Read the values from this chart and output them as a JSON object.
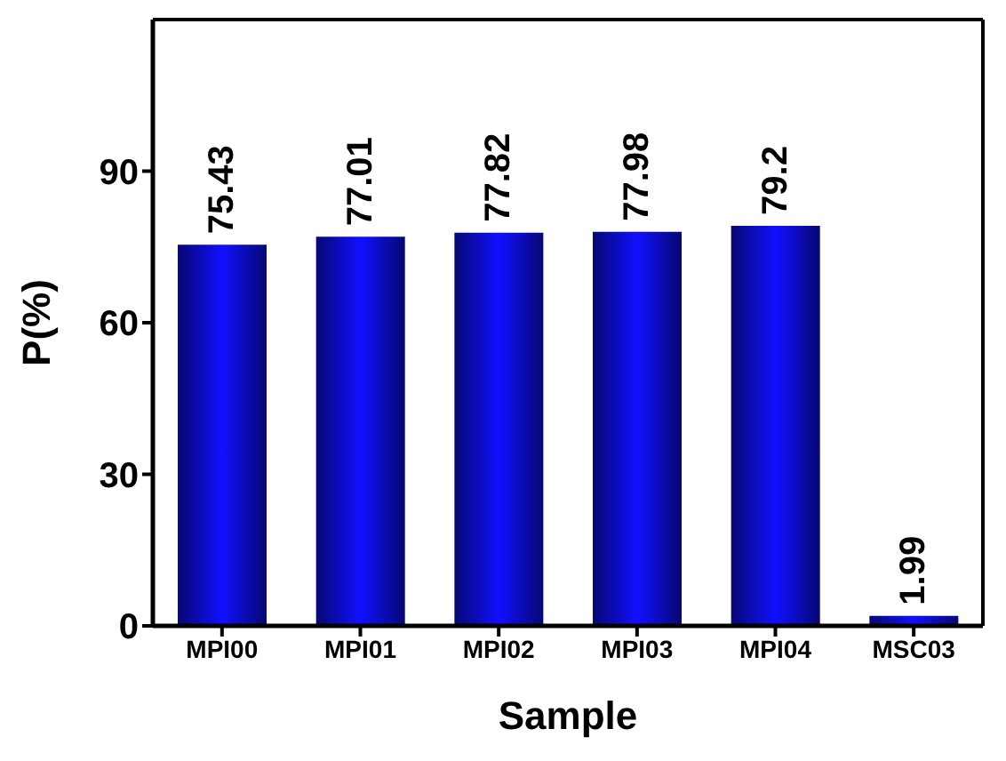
{
  "chart_data": {
    "type": "bar",
    "xlabel": "Sample",
    "ylabel": "P(%)",
    "categories": [
      "MPI00",
      "MPI01",
      "MPI02",
      "MPI03",
      "MPI04",
      "MSC03"
    ],
    "values": [
      75.43,
      77.01,
      77.82,
      77.98,
      79.2,
      1.99
    ],
    "color": "#1010ff",
    "ylim": [
      0,
      120
    ],
    "yticks": [
      0,
      30,
      60,
      90
    ],
    "data_labels": true,
    "grid": false,
    "legend": false
  }
}
